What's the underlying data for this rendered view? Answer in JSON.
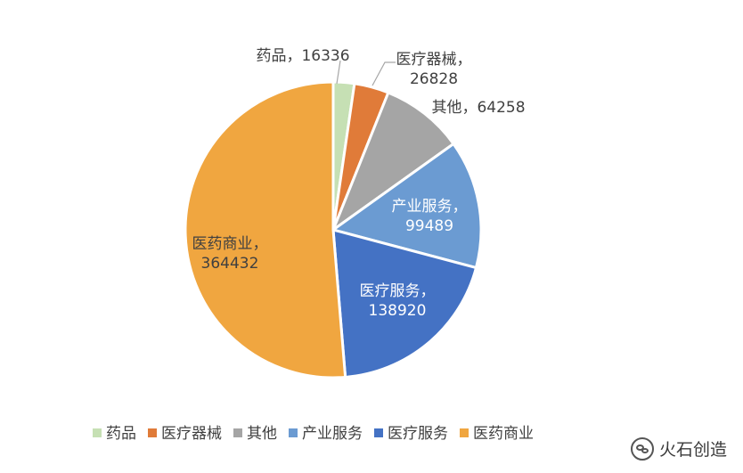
{
  "chart_data": {
    "type": "pie",
    "title": "",
    "start_angle_deg": 0,
    "direction": "clockwise",
    "slices": [
      {
        "category": "药品",
        "value": 16336,
        "label": "药品，16336",
        "label_lines": [
          "药品，16336"
        ],
        "color": "#c6e0b4"
      },
      {
        "category": "医疗器械",
        "value": 26828,
        "label": "医疗器械，26828",
        "label_lines": [
          "医疗器械，",
          "26828"
        ],
        "color": "#e07b39"
      },
      {
        "category": "其他",
        "value": 64258,
        "label": "其他，64258",
        "label_lines": [
          "其他，64258"
        ],
        "color": "#a5a5a5"
      },
      {
        "category": "产业服务",
        "value": 99489,
        "label": "产业服务，99489",
        "label_lines": [
          "产业服务，",
          "99489"
        ],
        "color": "#6b9bd2"
      },
      {
        "category": "医疗服务",
        "value": 138920,
        "label": "医疗服务，138920",
        "label_lines": [
          "医疗服务，",
          "138920"
        ],
        "color": "#4472c4"
      },
      {
        "category": "医药商业",
        "value": 364432,
        "label": "医药商业，364432",
        "label_lines": [
          "医药商业，",
          "364432"
        ],
        "color": "#f0a640"
      }
    ],
    "legend": {
      "placement": "bottom",
      "items": [
        "药品",
        "医疗器械",
        "其他",
        "产业服务",
        "医疗服务",
        "医药商业"
      ]
    }
  },
  "watermark": {
    "text": "火石创造",
    "icon": "wechat-icon"
  }
}
